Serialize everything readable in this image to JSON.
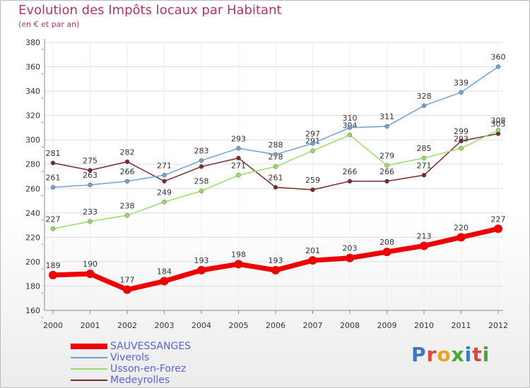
{
  "header": {
    "title": "Evolution des Impôts locaux par Habitant",
    "subtitle": "(en € et par an)"
  },
  "logo": {
    "text": "Proxiti",
    "colors": [
      "#3b78c4",
      "#e0443b",
      "#f0a020",
      "#4aa53a",
      "#3b78c4",
      "#e0443b",
      "#4aa53a"
    ]
  },
  "colors": {
    "title": "#b5336a",
    "legend_text": "#5565d8",
    "grid": "#dddddd",
    "axis": "#888888"
  },
  "chart_data": {
    "type": "line",
    "categories": [
      "2000",
      "2001",
      "2002",
      "2003",
      "2004",
      "2005",
      "2006",
      "2007",
      "2008",
      "2009",
      "2010",
      "2011",
      "2012"
    ],
    "ylim": [
      160,
      380
    ],
    "yticks": [
      160,
      180,
      200,
      220,
      240,
      260,
      280,
      300,
      320,
      340,
      360,
      380
    ],
    "grid": true,
    "legend_position": "bottom-left",
    "series": [
      {
        "name": "Medeyrolles",
        "color": "#7a2a2a",
        "values": [
          281,
          275,
          282,
          266,
          278,
          285,
          261,
          259,
          266,
          266,
          271,
          299,
          305
        ],
        "labels": [
          "281",
          "275",
          "282",
          "",
          "",
          "",
          "261",
          "259",
          "266",
          "266",
          "271",
          "299",
          "305"
        ]
      },
      {
        "name": "Usson-en-Forez",
        "color": "#99dd66",
        "values": [
          227,
          233,
          238,
          249,
          258,
          271,
          278,
          291,
          304,
          279,
          285,
          293,
          308
        ],
        "labels": [
          "227",
          "233",
          "238",
          "249",
          "258",
          "271",
          "278",
          "291",
          "304",
          "279",
          "285",
          "293",
          "308"
        ]
      },
      {
        "name": "Viverols",
        "color": "#6fa3d8",
        "values": [
          261,
          263,
          266,
          271,
          283,
          293,
          288,
          297,
          310,
          311,
          328,
          339,
          360
        ],
        "labels": [
          "261",
          "263",
          "266",
          "271",
          "283",
          "293",
          "288",
          "297",
          "310",
          "311",
          "328",
          "339",
          "360"
        ]
      },
      {
        "name": "SAUVESSANGES",
        "color": "#ee0000",
        "values": [
          189,
          190,
          177,
          184,
          193,
          198,
          193,
          201,
          203,
          208,
          213,
          220,
          227
        ],
        "labels": [
          "189",
          "190",
          "177",
          "184",
          "193",
          "198",
          "193",
          "201",
          "203",
          "208",
          "213",
          "220",
          "227"
        ]
      }
    ],
    "legend": [
      "SAUVESSANGES",
      "Viverols",
      "Usson-en-Forez",
      "Medeyrolles"
    ]
  }
}
